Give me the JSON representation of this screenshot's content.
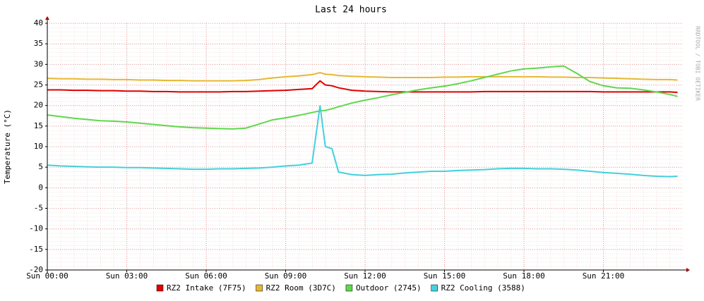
{
  "chart_data": {
    "type": "line",
    "title": "Last 24 hours",
    "y_label": "Temperature (°C)",
    "watermark": "RRDTOOL / TOBI OETIKER",
    "x": [
      0,
      0.5,
      1,
      1.5,
      2,
      2.5,
      3,
      3.5,
      4,
      4.5,
      5,
      5.5,
      6,
      6.5,
      7,
      7.5,
      8,
      8.5,
      9,
      9.5,
      10,
      10.3,
      10.5,
      10.75,
      11,
      11.5,
      12,
      12.5,
      13,
      13.5,
      14,
      14.5,
      15,
      15.5,
      16,
      16.5,
      17,
      17.5,
      18,
      18.5,
      19,
      19.5,
      20,
      20.5,
      21,
      21.5,
      22,
      22.5,
      23,
      23.5,
      23.8
    ],
    "xlim": [
      0,
      24
    ],
    "xticks": [
      {
        "value": 0,
        "label": "Sun 00:00"
      },
      {
        "value": 3,
        "label": "Sun 03:00"
      },
      {
        "value": 6,
        "label": "Sun 06:00"
      },
      {
        "value": 9,
        "label": "Sun 09:00"
      },
      {
        "value": 12,
        "label": "Sun 12:00"
      },
      {
        "value": 15,
        "label": "Sun 15:00"
      },
      {
        "value": 18,
        "label": "Sun 18:00"
      },
      {
        "value": 21,
        "label": "Sun 21:00"
      }
    ],
    "ylim": [
      -20,
      40
    ],
    "yticks": [
      -20,
      -15,
      -10,
      -5,
      0,
      5,
      10,
      15,
      20,
      25,
      30,
      35,
      40
    ],
    "grid": true,
    "series": [
      {
        "name": "RZ2 Intake (7F75)",
        "color": "#e00000",
        "values": [
          23.8,
          23.8,
          23.7,
          23.7,
          23.6,
          23.6,
          23.5,
          23.5,
          23.4,
          23.4,
          23.3,
          23.3,
          23.3,
          23.3,
          23.4,
          23.4,
          23.5,
          23.6,
          23.7,
          23.9,
          24.1,
          26,
          25,
          24.8,
          24.3,
          23.7,
          23.5,
          23.4,
          23.3,
          23.3,
          23.3,
          23.3,
          23.3,
          23.3,
          23.3,
          23.4,
          23.4,
          23.4,
          23.4,
          23.4,
          23.4,
          23.4,
          23.4,
          23.4,
          23.3,
          23.3,
          23.3,
          23.3,
          23.3,
          23.3,
          23.2
        ]
      },
      {
        "name": "RZ2 Room (3D7C)",
        "color": "#e6b830",
        "values": [
          26.6,
          26.5,
          26.5,
          26.4,
          26.4,
          26.3,
          26.3,
          26.2,
          26.2,
          26.1,
          26.1,
          26,
          26,
          26,
          26,
          26.1,
          26.3,
          26.7,
          27,
          27.2,
          27.5,
          28,
          27.6,
          27.5,
          27.3,
          27.1,
          27,
          26.9,
          26.8,
          26.8,
          26.8,
          26.8,
          26.9,
          26.9,
          27,
          27,
          27,
          27,
          27,
          27,
          26.9,
          26.9,
          26.8,
          26.8,
          26.7,
          26.6,
          26.5,
          26.4,
          26.3,
          26.3,
          26.2
        ]
      },
      {
        "name": "Outdoor (2745)",
        "color": "#5ed84c",
        "values": [
          17.7,
          17.3,
          16.9,
          16.6,
          16.3,
          16.2,
          16,
          15.7,
          15.4,
          15.1,
          14.8,
          14.6,
          14.5,
          14.4,
          14.3,
          14.5,
          15.5,
          16.5,
          17,
          17.6,
          18.3,
          18.7,
          18.8,
          19.2,
          19.7,
          20.6,
          21.3,
          21.9,
          22.6,
          23.2,
          23.8,
          24.3,
          24.7,
          25.3,
          26,
          26.8,
          27.6,
          28.4,
          28.9,
          29.1,
          29.4,
          29.6,
          27.8,
          25.8,
          24.8,
          24.3,
          24.2,
          23.8,
          23.3,
          22.7,
          22.2
        ]
      },
      {
        "name": "RZ2 Cooling (3588)",
        "color": "#44d0dc",
        "values": [
          5.5,
          5.3,
          5.2,
          5.1,
          5,
          5,
          4.9,
          4.9,
          4.8,
          4.7,
          4.6,
          4.5,
          4.5,
          4.6,
          4.6,
          4.7,
          4.8,
          5,
          5.3,
          5.5,
          6,
          20,
          10,
          9.5,
          3.8,
          3.2,
          3,
          3.2,
          3.3,
          3.6,
          3.8,
          4,
          4,
          4.2,
          4.3,
          4.4,
          4.6,
          4.7,
          4.7,
          4.6,
          4.6,
          4.5,
          4.3,
          4,
          3.7,
          3.5,
          3.3,
          3,
          2.8,
          2.7,
          2.8
        ]
      }
    ]
  }
}
